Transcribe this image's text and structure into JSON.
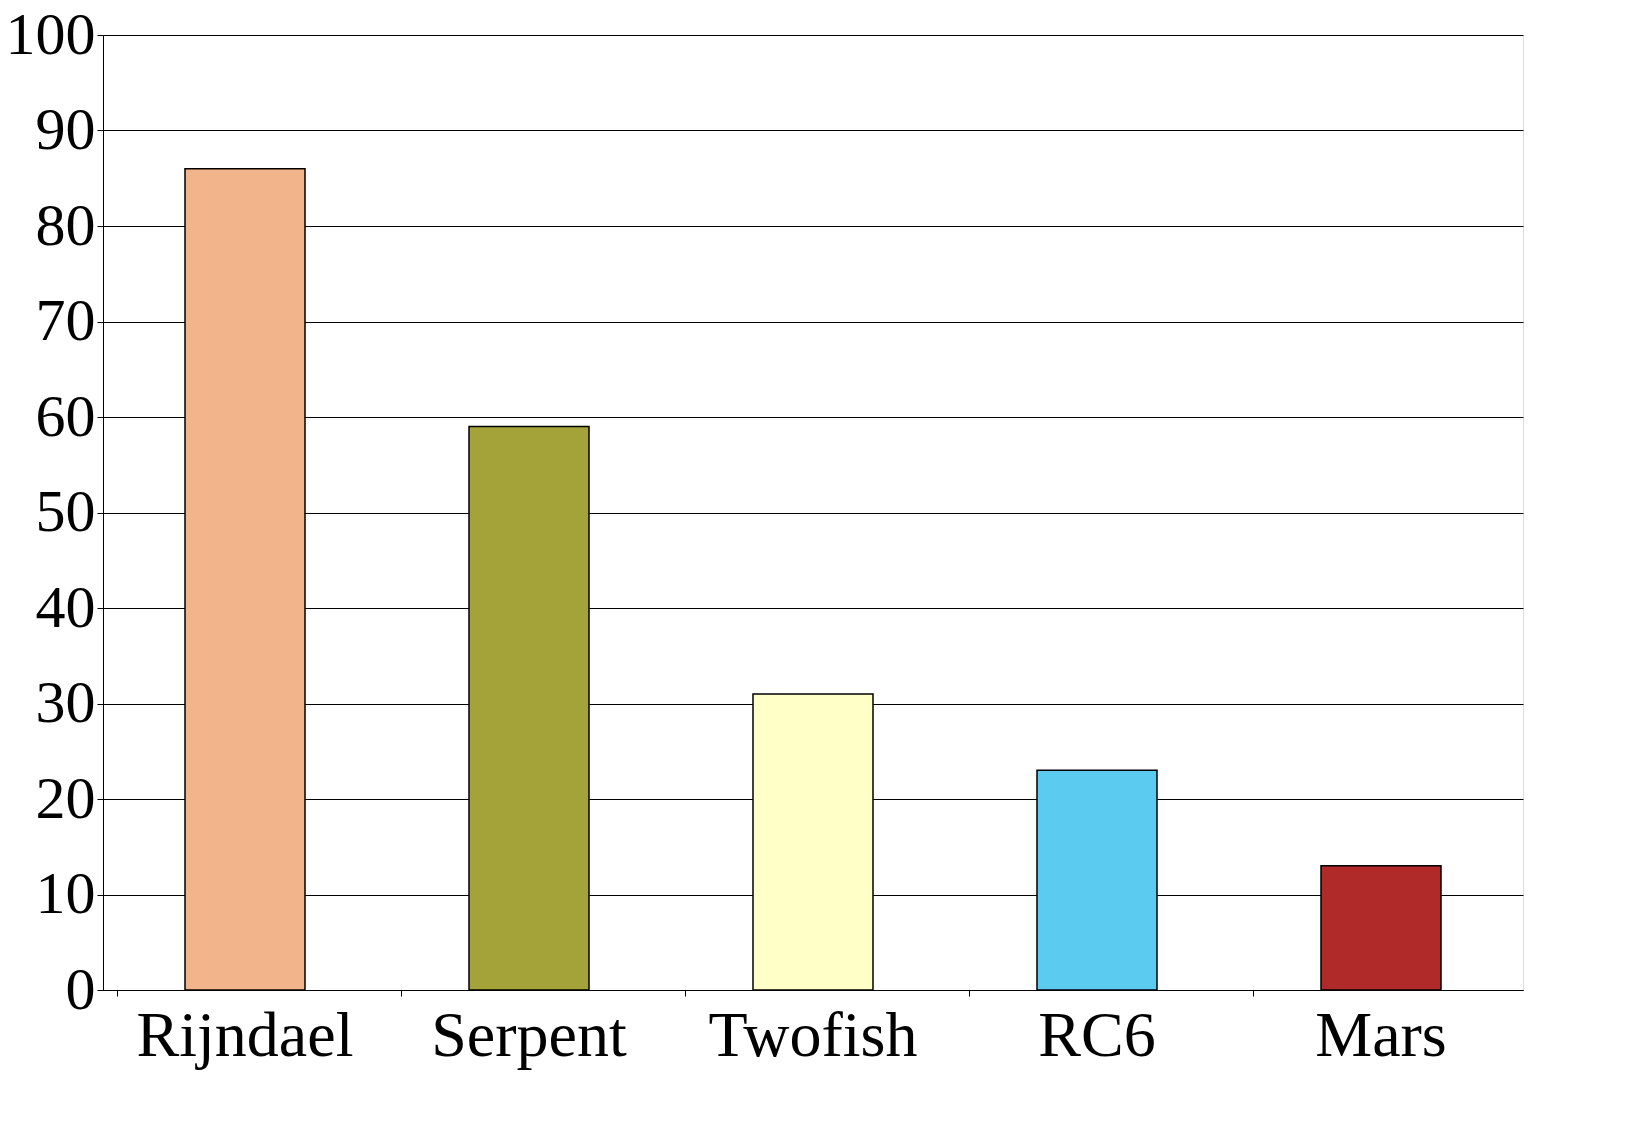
{
  "chart_data": {
    "type": "bar",
    "categories": [
      "Rijndael",
      "Serpent",
      "Twofish",
      "RC6",
      "Mars"
    ],
    "values": [
      86,
      59,
      31,
      23,
      13
    ],
    "colors": [
      "#f2b48a",
      "#a3a33a",
      "#ffffc8",
      "#5ccbf0",
      "#b02a2a"
    ],
    "ylim": [
      0,
      100
    ],
    "yticks": [
      0,
      10,
      20,
      30,
      40,
      50,
      60,
      70,
      80,
      90,
      100
    ],
    "grid": "y",
    "legend": false
  }
}
